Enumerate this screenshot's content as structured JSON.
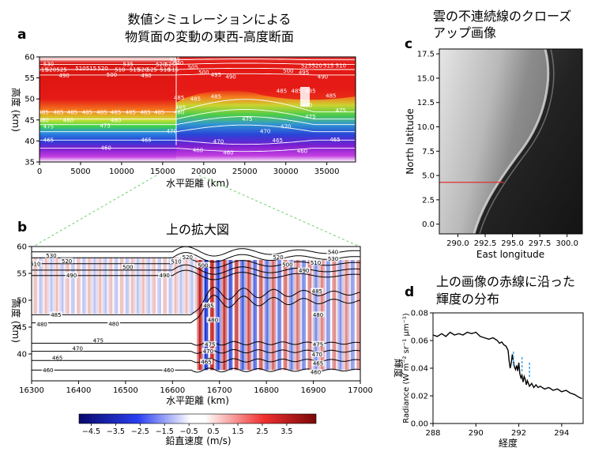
{
  "colors": {
    "warm_dark": "#b0090f",
    "warm_mid": "#ee2a1c",
    "cool_blue": "#1f3fd0",
    "violet": "#7e1fc9",
    "radiance_marker": "#4aa8e8",
    "red_line": "#e03030",
    "zoom_lines": "#6fcf6f"
  },
  "chart_data": [
    {
      "id": "a",
      "type": "heatmap",
      "panel_label": "a",
      "title_lines": [
        "数値シミュレーションによる",
        "物質面の変動の東西-高度断面"
      ],
      "xlabel": "水平距離 (km)",
      "ylabel": "高度 (km)",
      "xlim": [
        0,
        38500
      ],
      "ylim": [
        35,
        60
      ],
      "xticks": [
        0,
        5000,
        10000,
        15000,
        20000,
        25000,
        30000,
        35000
      ],
      "xtick_labels": [
        "0",
        "5000",
        "10000",
        "15000",
        "20000",
        "25000",
        "30000",
        "35000"
      ],
      "yticks": [
        35,
        40,
        45,
        50,
        55,
        60
      ],
      "ytick_labels": [
        "35",
        "40",
        "45",
        "50",
        "55",
        "60"
      ],
      "discontinuity_x": 16650,
      "contour_labels": [
        {
          "t": "530",
          "x": 1100,
          "y": 58.3
        },
        {
          "t": "515",
          "x": 400,
          "y": 57.0
        },
        {
          "t": "520",
          "x": 1400,
          "y": 57.0
        },
        {
          "t": "525",
          "x": 2700,
          "y": 57.0
        },
        {
          "t": "510",
          "x": 5000,
          "y": 57.3
        },
        {
          "t": "515",
          "x": 6300,
          "y": 57.3
        },
        {
          "t": "520",
          "x": 7700,
          "y": 57.3
        },
        {
          "t": "535",
          "x": 10800,
          "y": 58.3
        },
        {
          "t": "510",
          "x": 9800,
          "y": 57.0
        },
        {
          "t": "515",
          "x": 11600,
          "y": 57.0
        },
        {
          "t": "520",
          "x": 12600,
          "y": 57.0
        },
        {
          "t": "525",
          "x": 13700,
          "y": 57.0
        },
        {
          "t": "490",
          "x": 3000,
          "y": 55.6
        },
        {
          "t": "500",
          "x": 8800,
          "y": 55.8
        },
        {
          "t": "490",
          "x": 13000,
          "y": 55.6
        },
        {
          "t": "540",
          "x": 16900,
          "y": 58.6
        },
        {
          "t": "510",
          "x": 15300,
          "y": 57.0
        },
        {
          "t": "515",
          "x": 16300,
          "y": 57.0
        },
        {
          "t": "520",
          "x": 14800,
          "y": 58.2
        },
        {
          "t": "525",
          "x": 15900,
          "y": 58.2
        },
        {
          "t": "505",
          "x": 18700,
          "y": 57.6
        },
        {
          "t": "500",
          "x": 20000,
          "y": 56.3
        },
        {
          "t": "495",
          "x": 21500,
          "y": 55.8
        },
        {
          "t": "490",
          "x": 23300,
          "y": 55.3
        },
        {
          "t": "535",
          "x": 16500,
          "y": 59.4
        },
        {
          "t": "525",
          "x": 32500,
          "y": 57.9
        },
        {
          "t": "520",
          "x": 33800,
          "y": 57.9
        },
        {
          "t": "515",
          "x": 35200,
          "y": 57.9
        },
        {
          "t": "510",
          "x": 36700,
          "y": 57.9
        },
        {
          "t": "500",
          "x": 30300,
          "y": 56.7
        },
        {
          "t": "495",
          "x": 32200,
          "y": 56.3
        },
        {
          "t": "490",
          "x": 34500,
          "y": 55.3
        },
        {
          "t": "485",
          "x": 500,
          "y": 46.8
        },
        {
          "t": "485",
          "x": 2300,
          "y": 46.8
        },
        {
          "t": "485",
          "x": 4000,
          "y": 46.8
        },
        {
          "t": "485",
          "x": 5800,
          "y": 46.8
        },
        {
          "t": "485",
          "x": 7600,
          "y": 46.8
        },
        {
          "t": "485",
          "x": 9300,
          "y": 46.8
        },
        {
          "t": "485",
          "x": 11100,
          "y": 46.8
        },
        {
          "t": "485",
          "x": 12900,
          "y": 46.8
        },
        {
          "t": "485",
          "x": 14600,
          "y": 46.8
        },
        {
          "t": "485",
          "x": 17000,
          "y": 50.3
        },
        {
          "t": "485",
          "x": 19000,
          "y": 50.0
        },
        {
          "t": "485",
          "x": 21500,
          "y": 50.6
        },
        {
          "t": "480",
          "x": 500,
          "y": 45.0
        },
        {
          "t": "480",
          "x": 3500,
          "y": 45.0
        },
        {
          "t": "480",
          "x": 9300,
          "y": 45.0
        },
        {
          "t": "480",
          "x": 17000,
          "y": 46.8
        },
        {
          "t": "485",
          "x": 17200,
          "y": 48.0
        },
        {
          "t": "475",
          "x": 1100,
          "y": 43.5
        },
        {
          "t": "475",
          "x": 8000,
          "y": 43.6
        },
        {
          "t": "475",
          "x": 25300,
          "y": 45.2
        },
        {
          "t": "470",
          "x": 16100,
          "y": 42.3
        },
        {
          "t": "470",
          "x": 27500,
          "y": 42.3
        },
        {
          "t": "470",
          "x": 21800,
          "y": 39.9
        },
        {
          "t": "485",
          "x": 29500,
          "y": 51.9
        },
        {
          "t": "485",
          "x": 31300,
          "y": 51.9
        },
        {
          "t": "485",
          "x": 33000,
          "y": 51.9
        },
        {
          "t": "485",
          "x": 35500,
          "y": 50.8
        },
        {
          "t": "480",
          "x": 32600,
          "y": 48.5
        },
        {
          "t": "475",
          "x": 36700,
          "y": 47.3
        },
        {
          "t": "470",
          "x": 30000,
          "y": 43.5
        },
        {
          "t": "475",
          "x": 33000,
          "y": 45.8
        },
        {
          "t": "465",
          "x": 1100,
          "y": 40.3
        },
        {
          "t": "465",
          "x": 13000,
          "y": 40.3
        },
        {
          "t": "465",
          "x": 29000,
          "y": 40.2
        },
        {
          "t": "465",
          "x": 36000,
          "y": 40.4
        },
        {
          "t": "460",
          "x": 8100,
          "y": 38.4
        },
        {
          "t": "460",
          "x": 23000,
          "y": 37.3
        },
        {
          "t": "460",
          "x": 32000,
          "y": 37.6
        },
        {
          "t": "460",
          "x": 19300,
          "y": 37.8
        }
      ]
    },
    {
      "id": "b",
      "type": "heatmap",
      "panel_label": "b",
      "title": "上の拡大図",
      "xlabel": "水平距離 (km)",
      "ylabel": "高度 (km)",
      "xlim": [
        16300,
        17000
      ],
      "ylim": [
        35,
        60
      ],
      "xticks": [
        16300,
        16400,
        16500,
        16600,
        16700,
        16800,
        16900,
        17000
      ],
      "xtick_labels": [
        "16300",
        "16400",
        "16500",
        "16600",
        "16700",
        "16800",
        "16900",
        "17000"
      ],
      "yticks": [
        40,
        45,
        50,
        55,
        60
      ],
      "ytick_labels": [
        "40",
        "45",
        "50",
        "55",
        "60"
      ],
      "colorbar": {
        "label": "鉛直速度 (m/s)",
        "vmin": -5,
        "vmax": 4.7,
        "ticks": [
          -4.5,
          -3.5,
          -2.5,
          -1.5,
          -0.5,
          0.5,
          1.5,
          2.5,
          3.5
        ],
        "tick_labels": [
          "−4.5",
          "−3.5",
          "−2.5",
          "−1.5",
          "−0.5",
          "0.5",
          "1.5",
          "2.5",
          "3.5"
        ]
      },
      "contour_labels": [
        {
          "t": "530",
          "x": 16342,
          "y": 58.3
        },
        {
          "t": "520",
          "x": 16375,
          "y": 57.3
        },
        {
          "t": "510",
          "x": 16308,
          "y": 56.8
        },
        {
          "t": "500",
          "x": 16505,
          "y": 56.2
        },
        {
          "t": "490",
          "x": 16385,
          "y": 54.6
        },
        {
          "t": "490",
          "x": 16583,
          "y": 54.6
        },
        {
          "t": "510",
          "x": 16608,
          "y": 57.2
        },
        {
          "t": "520",
          "x": 16632,
          "y": 58.0
        },
        {
          "t": "500",
          "x": 16665,
          "y": 56.5
        },
        {
          "t": "540",
          "x": 16942,
          "y": 59.0
        },
        {
          "t": "530",
          "x": 16942,
          "y": 57.7
        },
        {
          "t": "510",
          "x": 16905,
          "y": 57.0
        },
        {
          "t": "490",
          "x": 16880,
          "y": 55.5
        },
        {
          "t": "520",
          "x": 16825,
          "y": 58.0
        },
        {
          "t": "500",
          "x": 16845,
          "y": 56.6
        },
        {
          "t": "485",
          "x": 16352,
          "y": 47.3
        },
        {
          "t": "485",
          "x": 16677,
          "y": 49.0
        },
        {
          "t": "485",
          "x": 16908,
          "y": 51.7
        },
        {
          "t": "480",
          "x": 16322,
          "y": 45.5
        },
        {
          "t": "480",
          "x": 16475,
          "y": 45.6
        },
        {
          "t": "480",
          "x": 16686,
          "y": 46.3
        },
        {
          "t": "480",
          "x": 16910,
          "y": 47.3
        },
        {
          "t": "475",
          "x": 16442,
          "y": 42.5
        },
        {
          "t": "475",
          "x": 16680,
          "y": 41.8
        },
        {
          "t": "475",
          "x": 16910,
          "y": 41.8
        },
        {
          "t": "470",
          "x": 16398,
          "y": 41.0
        },
        {
          "t": "470",
          "x": 16676,
          "y": 40.5
        },
        {
          "t": "470",
          "x": 16908,
          "y": 39.9
        },
        {
          "t": "465",
          "x": 16355,
          "y": 39.3
        },
        {
          "t": "465",
          "x": 16672,
          "y": 38.5
        },
        {
          "t": "465",
          "x": 16910,
          "y": 38.2
        },
        {
          "t": "460",
          "x": 16335,
          "y": 37.0
        },
        {
          "t": "460",
          "x": 16592,
          "y": 37.0
        },
        {
          "t": "460",
          "x": 16905,
          "y": 36.6
        }
      ]
    },
    {
      "id": "c",
      "type": "heatmap",
      "panel_label": "c",
      "title_lines": [
        "雲の不連続線のクローズ",
        "アップ画像"
      ],
      "xlabel": "East longitude",
      "ylabel": "North latitude",
      "xlim": [
        288.3,
        301.4
      ],
      "ylim": [
        -1.0,
        18.0
      ],
      "xticks": [
        290.0,
        292.5,
        295.0,
        297.5,
        300.0
      ],
      "xtick_labels": [
        "290.0",
        "292.5",
        "295.0",
        "297.5",
        "300.0"
      ],
      "yticks": [
        0.0,
        2.5,
        5.0,
        7.5,
        10.0,
        12.5,
        15.0,
        17.5
      ],
      "ytick_labels": [
        "0.0",
        "2.5",
        "5.0",
        "7.5",
        "10.0",
        "12.5",
        "15.0",
        "17.5"
      ],
      "red_line": {
        "x": [
          288.3,
          294.2
        ],
        "y": [
          4.3,
          4.3
        ]
      }
    },
    {
      "id": "d",
      "type": "line",
      "panel_label": "d",
      "title_lines": [
        "上の画像の赤線に沿った",
        "輝度の分布"
      ],
      "xlabel": "経度",
      "ylabel_jp": "輝度",
      "ylabel": "Radiance (W m⁻² sr⁻¹ μm⁻¹)",
      "xlim": [
        288,
        295
      ],
      "ylim": [
        0,
        0.08
      ],
      "xticks": [
        288,
        290,
        292,
        294
      ],
      "xtick_labels": [
        "288",
        "290",
        "292",
        "294"
      ],
      "yticks": [
        0.0,
        0.02,
        0.04,
        0.06,
        0.08
      ],
      "ytick_labels": [
        "0.00",
        "0.02",
        "0.04",
        "0.06",
        "0.08"
      ],
      "series": [
        {
          "x": [
            288.0,
            288.2,
            288.4,
            288.6,
            288.8,
            289.0,
            289.2,
            289.4,
            289.6,
            289.8,
            290.0,
            290.2,
            290.4,
            290.6,
            290.8,
            291.0,
            291.1,
            291.2,
            291.3,
            291.4,
            291.5,
            291.55,
            291.6,
            291.65,
            291.7,
            291.75,
            291.8,
            291.85,
            291.9,
            291.95,
            292.0,
            292.05,
            292.1,
            292.15,
            292.2,
            292.25,
            292.3,
            292.35,
            292.4,
            292.5,
            292.6,
            292.7,
            292.8,
            292.9,
            293.0,
            293.2,
            293.4,
            293.6,
            293.8,
            294.0,
            294.2,
            294.4,
            294.6,
            294.8,
            294.95
          ],
          "y": [
            0.064,
            0.063,
            0.065,
            0.063,
            0.066,
            0.064,
            0.065,
            0.064,
            0.066,
            0.065,
            0.066,
            0.063,
            0.062,
            0.061,
            0.062,
            0.06,
            0.058,
            0.059,
            0.057,
            0.056,
            0.053,
            0.045,
            0.04,
            0.044,
            0.05,
            0.045,
            0.041,
            0.039,
            0.042,
            0.038,
            0.044,
            0.036,
            0.033,
            0.035,
            0.03,
            0.034,
            0.032,
            0.028,
            0.031,
            0.027,
            0.029,
            0.026,
            0.028,
            0.026,
            0.027,
            0.025,
            0.026,
            0.024,
            0.025,
            0.023,
            0.024,
            0.022,
            0.021,
            0.019,
            0.018
          ]
        }
      ],
      "markers": [
        {
          "x": 291.75,
          "y1": 0.052,
          "y2": 0.041
        },
        {
          "x": 292.15,
          "y1": 0.048,
          "y2": 0.037
        },
        {
          "x": 292.5,
          "y1": 0.044,
          "y2": 0.033
        }
      ]
    }
  ]
}
